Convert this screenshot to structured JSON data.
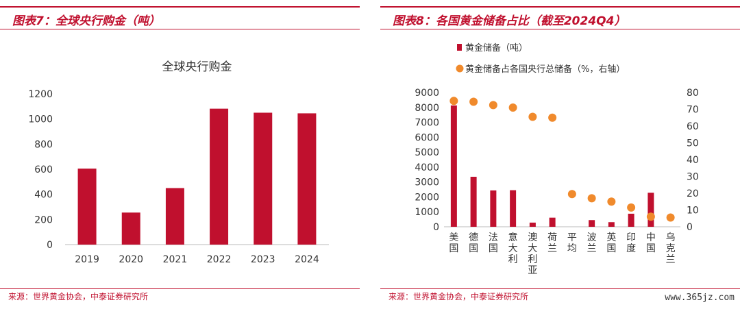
{
  "left": {
    "figure_title": "图表7：全球央行购金（吨）",
    "source": "来源：世界黄金协会，中泰证券研究所",
    "chart_data": {
      "type": "bar",
      "title": "全球央行购金",
      "categories": [
        "2019",
        "2020",
        "2021",
        "2022",
        "2023",
        "2024"
      ],
      "values": [
        605,
        255,
        450,
        1082,
        1050,
        1045
      ],
      "ylim": [
        0,
        1200
      ],
      "yticks": [
        0,
        200,
        400,
        600,
        800,
        1000,
        1200
      ],
      "grid": false,
      "color": "#c0102e"
    }
  },
  "right": {
    "figure_title": "图表8：各国黄金储备占比（截至2024Q4）",
    "source": "来源：世界黄金协会，中泰证券研究所",
    "chart_data": {
      "type": "bar",
      "categories": [
        "美国",
        "德国",
        "法国",
        "意大利",
        "澳大利亚",
        "荷兰",
        "平均",
        "波兰",
        "英国",
        "印度",
        "中国",
        "乌克兰"
      ],
      "series": [
        {
          "name": "黄金储备（吨）",
          "type": "bar",
          "axis": "left",
          "color": "#c0102e",
          "values": [
            8133,
            3352,
            2437,
            2452,
            280,
            612,
            null,
            448,
            310,
            876,
            2280,
            null
          ]
        },
        {
          "name": "黄金储备占各国央行总储备（%，右轴）",
          "type": "scatter",
          "axis": "right",
          "color": "#f08a2c",
          "values": [
            75,
            74.5,
            72.5,
            71,
            65.5,
            65,
            19.5,
            17,
            15,
            11.5,
            6,
            5.5
          ]
        }
      ],
      "ylim_left": [
        0,
        9000
      ],
      "yticks_left": [
        0,
        1000,
        2000,
        3000,
        4000,
        5000,
        6000,
        7000,
        8000,
        9000
      ],
      "ylim_right": [
        0,
        80
      ],
      "yticks_right": [
        0,
        10,
        20,
        30,
        40,
        50,
        60,
        70,
        80
      ],
      "legend_position": "top-left",
      "grid": false
    }
  },
  "watermark": "www.365jz.com"
}
